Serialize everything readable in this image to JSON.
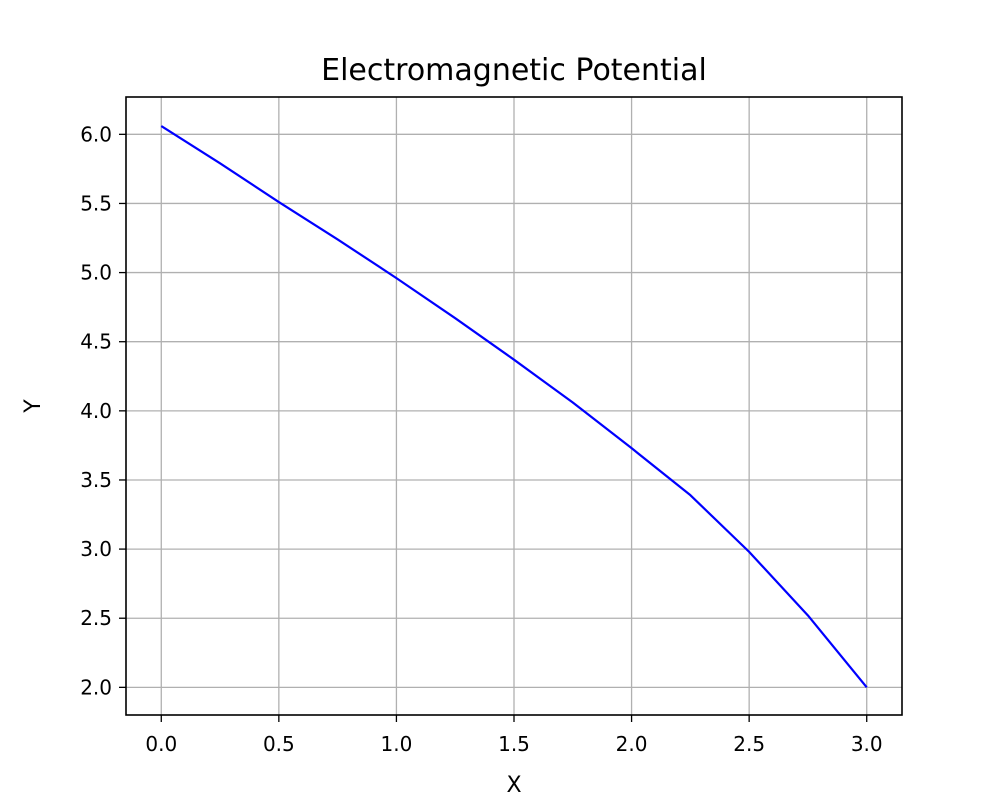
{
  "chart_data": {
    "type": "line",
    "title": "Electromagnetic Potential",
    "xlabel": "X",
    "ylabel": "Y",
    "xlim": [
      -0.15,
      3.15
    ],
    "ylim": [
      1.8,
      6.27
    ],
    "xticks": [
      0.0,
      0.5,
      1.0,
      1.5,
      2.0,
      2.5,
      3.0
    ],
    "xtick_labels": [
      "0.0",
      "0.5",
      "1.0",
      "1.5",
      "2.0",
      "2.5",
      "3.0"
    ],
    "yticks": [
      2.0,
      2.5,
      3.0,
      3.5,
      4.0,
      4.5,
      5.0,
      5.5,
      6.0
    ],
    "ytick_labels": [
      "2.0",
      "2.5",
      "3.0",
      "3.5",
      "4.0",
      "4.5",
      "5.0",
      "5.5",
      "6.0"
    ],
    "grid": true,
    "series": [
      {
        "color": "#0000ff",
        "x": [
          0.0,
          0.25,
          0.5,
          0.75,
          1.0,
          1.25,
          1.5,
          1.75,
          2.0,
          2.25,
          2.5,
          2.75,
          3.0
        ],
        "y": [
          6.06,
          5.79,
          5.51,
          5.24,
          4.96,
          4.67,
          4.37,
          4.06,
          3.73,
          3.39,
          2.98,
          2.52,
          2.0
        ]
      }
    ]
  }
}
